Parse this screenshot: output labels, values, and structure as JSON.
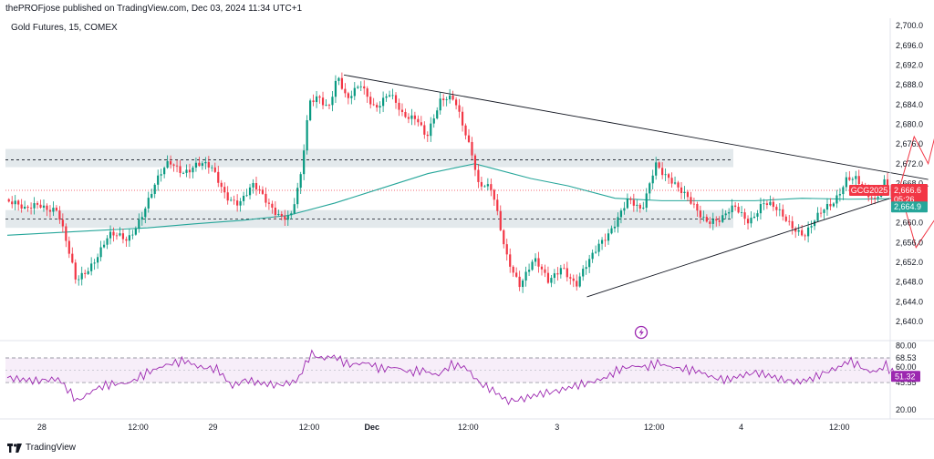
{
  "header": {
    "publisher": "thePROFjose published on TradingView.com, Dec 03, 2024 11:34 UTC+1",
    "symbol": "Gold Futures, 15, COMEX"
  },
  "footer": {
    "brand": "TradingView"
  },
  "colors": {
    "up": "#089981",
    "down": "#f23645",
    "ma": "#26a69a",
    "rsi": "#9c27b0",
    "projection": "#f23645",
    "zone": "#d9e2e6"
  },
  "icons": {
    "bolt": "lightning-bolt-icon",
    "logo": "tradingview-logo-icon"
  },
  "chart_data": [
    {
      "type": "candlestick",
      "title": "Gold Futures, 15, COMEX",
      "ylim": [
        2636.5,
        2701.5
      ],
      "y_ticks": [
        "2,700.0",
        "2,696.0",
        "2,692.0",
        "2,688.0",
        "2,684.0",
        "2,680.0",
        "2,676.0",
        "2,672.0",
        "2,668.0",
        "2,664.0",
        "2,660.0",
        "2,656.0",
        "2,652.0",
        "2,648.0",
        "2,644.0",
        "2,640.0"
      ],
      "x_ticks": [
        "28",
        "12:00",
        "29",
        "12:00",
        "Dec",
        "12:00",
        "3",
        "12:00",
        "4",
        "12:00"
      ],
      "last_price": {
        "symbol": "GCG2025",
        "price": "2,666.6",
        "countdown": "05:26",
        "value": 2666.6
      },
      "ma_value": {
        "label": "2,664.9",
        "value": 2664.9
      },
      "price_path": [
        [
          0,
          2664.8
        ],
        [
          0.2,
          2662.0
        ],
        [
          0.35,
          2664.5
        ],
        [
          0.55,
          2662.5
        ],
        [
          0.75,
          2648.0
        ],
        [
          0.95,
          2653.0
        ],
        [
          1.1,
          2657.0
        ],
        [
          1.3,
          2656.5
        ],
        [
          1.45,
          2662.0
        ],
        [
          1.6,
          2667.5
        ],
        [
          1.75,
          2672.0
        ],
        [
          1.9,
          2671.0
        ],
        [
          2.05,
          2672.0
        ],
        [
          2.2,
          2670.5
        ],
        [
          2.35,
          2666.0
        ],
        [
          2.5,
          2664.5
        ],
        [
          2.65,
          2667.0
        ],
        [
          2.8,
          2664.0
        ],
        [
          2.95,
          2662.0
        ],
        [
          3.05,
          2661.5
        ],
        [
          3.15,
          2668.0
        ],
        [
          3.25,
          2684.0
        ],
        [
          3.35,
          2686.0
        ],
        [
          3.45,
          2684.0
        ],
        [
          3.55,
          2690.0
        ],
        [
          3.65,
          2684.0
        ],
        [
          3.8,
          2688.0
        ],
        [
          3.95,
          2684.0
        ],
        [
          4.1,
          2686.0
        ],
        [
          4.25,
          2681.0
        ],
        [
          4.4,
          2682.0
        ],
        [
          4.5,
          2678.0
        ],
        [
          4.65,
          2684.0
        ],
        [
          4.8,
          2685.0
        ],
        [
          4.9,
          2680.0
        ],
        [
          5.0,
          2674.0
        ],
        [
          5.05,
          2668.0
        ],
        [
          5.2,
          2666.0
        ],
        [
          5.35,
          2654.0
        ],
        [
          5.5,
          2648.0
        ],
        [
          5.65,
          2652.0
        ],
        [
          5.8,
          2648.0
        ],
        [
          5.95,
          2652.0
        ],
        [
          6.1,
          2647.0
        ],
        [
          6.25,
          2652.0
        ],
        [
          6.35,
          2656.0
        ],
        [
          6.5,
          2660.0
        ],
        [
          6.65,
          2664.0
        ],
        [
          6.8,
          2662.0
        ],
        [
          6.95,
          2673.0
        ],
        [
          7.05,
          2670.0
        ],
        [
          7.2,
          2666.0
        ],
        [
          7.35,
          2664.0
        ],
        [
          7.5,
          2661.0
        ],
        [
          7.65,
          2660.0
        ],
        [
          7.8,
          2663.0
        ],
        [
          7.95,
          2661.0
        ],
        [
          8.1,
          2664.0
        ],
        [
          8.25,
          2662.0
        ],
        [
          8.4,
          2660.0
        ],
        [
          8.55,
          2658.0
        ],
        [
          8.7,
          2661.0
        ],
        [
          8.85,
          2664.0
        ],
        [
          9.0,
          2670.0
        ],
        [
          9.1,
          2669.0
        ],
        [
          9.2,
          2665.0
        ],
        [
          9.3,
          2664.0
        ],
        [
          9.4,
          2669.0
        ],
        [
          9.5,
          2666.6
        ]
      ],
      "ma_path": [
        [
          0,
          2657.5
        ],
        [
          0.5,
          2658.0
        ],
        [
          1.0,
          2658.5
        ],
        [
          1.5,
          2659.0
        ],
        [
          2.0,
          2659.8
        ],
        [
          2.5,
          2660.5
        ],
        [
          3.0,
          2661.5
        ],
        [
          3.5,
          2664.0
        ],
        [
          4.0,
          2667.0
        ],
        [
          4.5,
          2670.0
        ],
        [
          5.0,
          2672.0
        ],
        [
          5.2,
          2671.0
        ],
        [
          5.6,
          2669.0
        ],
        [
          6.0,
          2667.5
        ],
        [
          6.5,
          2665.0
        ],
        [
          7.0,
          2664.5
        ],
        [
          7.5,
          2664.5
        ],
        [
          8.0,
          2664.5
        ],
        [
          8.5,
          2665.0
        ],
        [
          9.0,
          2664.8
        ],
        [
          9.5,
          2664.9
        ]
      ],
      "zones": [
        [
          2671.3,
          2675.0
        ],
        [
          2659.0,
          2662.6
        ]
      ],
      "dashed_levels": [
        2672.8,
        2660.8
      ],
      "triangle": {
        "upper": [
          [
            3.6,
            2690.0
          ],
          [
            9.85,
            2668.8
          ]
        ],
        "lower": [
          [
            6.2,
            2645.0
          ],
          [
            9.85,
            2667.5
          ]
        ]
      },
      "projection_up": [
        [
          9.55,
          2667.5
        ],
        [
          9.7,
          2677.5
        ],
        [
          9.85,
          2672.0
        ],
        [
          10.15,
          2695.0
        ]
      ],
      "projection_down": [
        [
          9.55,
          2666.5
        ],
        [
          9.72,
          2655.0
        ],
        [
          9.95,
          2661.5
        ],
        [
          10.2,
          2642.0
        ]
      ]
    },
    {
      "type": "line",
      "title": "RSI",
      "ylim": [
        15.0,
        83.0
      ],
      "y_ticks": [
        "80.00",
        "68.53",
        "60.00",
        "45.55",
        "20.00"
      ],
      "last_value": {
        "label": "51.32",
        "value": 51.32
      },
      "band": [
        45.55,
        68.53
      ],
      "values_path": [
        [
          0,
          50
        ],
        [
          0.3,
          47
        ],
        [
          0.55,
          49
        ],
        [
          0.75,
          28
        ],
        [
          0.95,
          40
        ],
        [
          1.1,
          44
        ],
        [
          1.3,
          45
        ],
        [
          1.5,
          55
        ],
        [
          1.7,
          62
        ],
        [
          1.9,
          66
        ],
        [
          2.05,
          60
        ],
        [
          2.25,
          58
        ],
        [
          2.4,
          42
        ],
        [
          2.55,
          48
        ],
        [
          2.7,
          45
        ],
        [
          2.9,
          43
        ],
        [
          3.1,
          47
        ],
        [
          3.25,
          73
        ],
        [
          3.35,
          68
        ],
        [
          3.5,
          70
        ],
        [
          3.65,
          62
        ],
        [
          3.85,
          64
        ],
        [
          4.0,
          58
        ],
        [
          4.15,
          60
        ],
        [
          4.3,
          55
        ],
        [
          4.45,
          57
        ],
        [
          4.6,
          52
        ],
        [
          4.75,
          62
        ],
        [
          4.9,
          60
        ],
        [
          5.05,
          45
        ],
        [
          5.2,
          38
        ],
        [
          5.35,
          28
        ],
        [
          5.5,
          30
        ],
        [
          5.7,
          35
        ],
        [
          5.9,
          38
        ],
        [
          6.05,
          42
        ],
        [
          6.25,
          46
        ],
        [
          6.4,
          50
        ],
        [
          6.55,
          58
        ],
        [
          6.7,
          61
        ],
        [
          6.85,
          60
        ],
        [
          6.95,
          64
        ],
        [
          7.1,
          60
        ],
        [
          7.25,
          58
        ],
        [
          7.4,
          56
        ],
        [
          7.55,
          50
        ],
        [
          7.7,
          48
        ],
        [
          7.85,
          52
        ],
        [
          8.0,
          55
        ],
        [
          8.15,
          52
        ],
        [
          8.3,
          48
        ],
        [
          8.45,
          46
        ],
        [
          8.6,
          49
        ],
        [
          8.75,
          55
        ],
        [
          8.9,
          60
        ],
        [
          9.0,
          66
        ],
        [
          9.1,
          62
        ],
        [
          9.2,
          56
        ],
        [
          9.3,
          56
        ],
        [
          9.4,
          62
        ],
        [
          9.5,
          51.32
        ]
      ]
    }
  ]
}
